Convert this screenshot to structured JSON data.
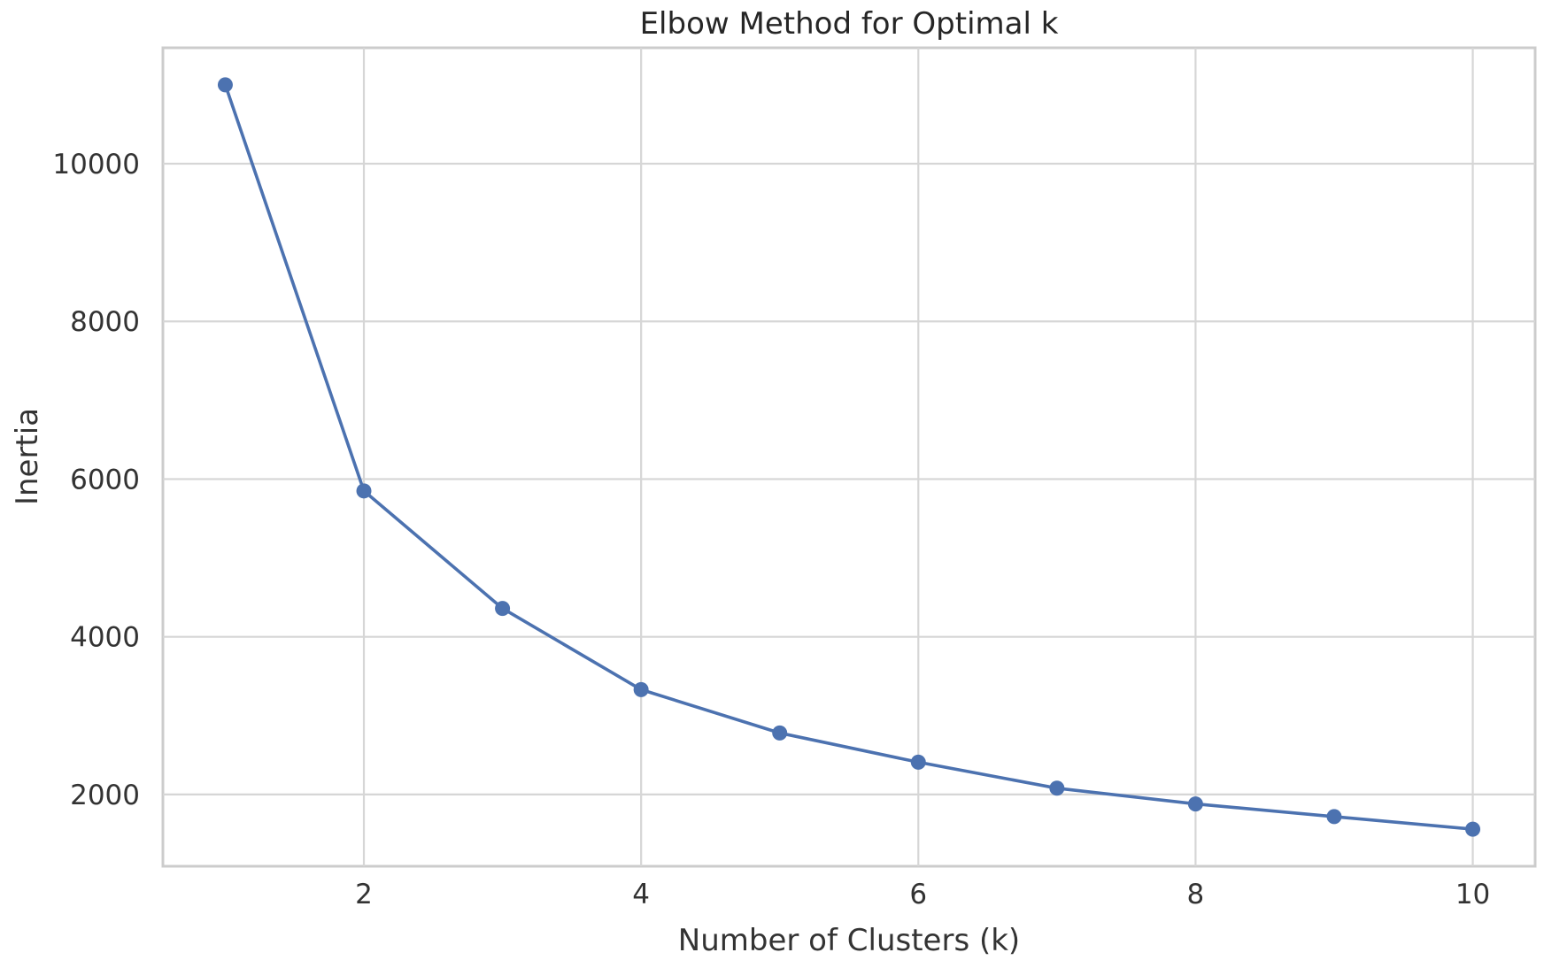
{
  "chart_data": {
    "type": "line",
    "title": "Elbow Method for Optimal k",
    "xlabel": "Number of Clusters (k)",
    "ylabel": "Inertia",
    "x": [
      1,
      2,
      3,
      4,
      5,
      6,
      7,
      8,
      9,
      10
    ],
    "series": [
      {
        "values": [
          11000,
          5850,
          4360,
          3330,
          2780,
          2410,
          2080,
          1880,
          1720,
          1560
        ],
        "color": "#4c72b0",
        "marker": "circle"
      }
    ],
    "xticks": [
      2,
      4,
      6,
      8,
      10
    ],
    "yticks": [
      2000,
      4000,
      6000,
      8000,
      10000
    ],
    "xtick_labels": [
      "2",
      "4",
      "6",
      "8",
      "10"
    ],
    "ytick_labels": [
      "2000",
      "4000",
      "6000",
      "8000",
      "10000"
    ],
    "xlim": [
      0.55,
      10.45
    ],
    "ylim": [
      1090,
      11470
    ],
    "grid": true,
    "legend": "none"
  }
}
